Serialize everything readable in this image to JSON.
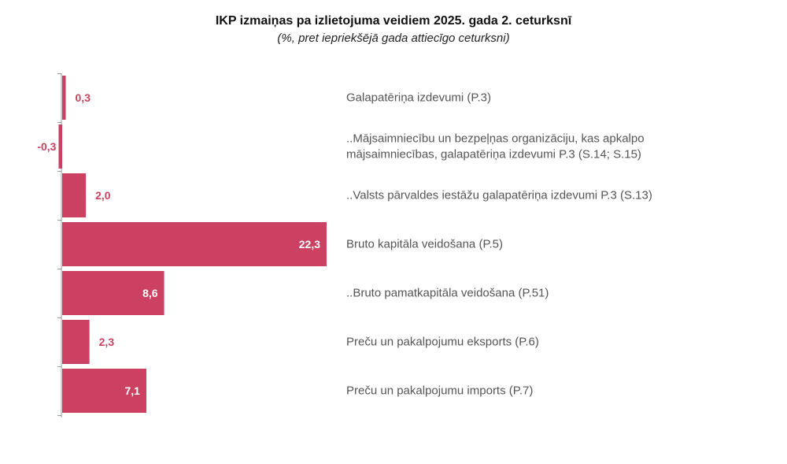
{
  "chart_data": {
    "type": "bar",
    "orientation": "horizontal",
    "title": "IKP izmaiņas pa izlietojuma veidiem 2025. gada 2. ceturksnī",
    "subtitle": "(%, pret iepriekšējā gada attiecīgo ceturksni)",
    "categories": [
      [
        "Galapatēriņa izdevumi (P.3)"
      ],
      [
        "..Mājsaimniecību un bezpeļņas organizāciju, kas apkalpo",
        "mājsaimniecības, galapatēriņa izdevumi P.3 (S.14; S.15)"
      ],
      [
        "..Valsts pārvaldes iestāžu galapatēriņa izdevumi P.3 (S.13)"
      ],
      [
        "Bruto kapitāla veidošana (P.5)"
      ],
      [
        "..Bruto pamatkapitāla veidošana (P.51)"
      ],
      [
        "Preču un pakalpojumu eksports (P.6)"
      ],
      [
        "Preču un pakalpojumu imports (P.7)"
      ]
    ],
    "values": [
      0.3,
      -0.3,
      2.0,
      22.3,
      8.6,
      2.3,
      7.1
    ],
    "value_labels": [
      "0,3",
      "-0,3",
      "2,0",
      "22,3",
      "8,6",
      "2,3",
      "7,1"
    ],
    "xlim": [
      -0.3,
      22.3
    ],
    "grid": false,
    "legend": "none",
    "colors": {
      "bar": "#cc4161",
      "label_outside": "#cc4161",
      "label_inside": "#ffffff",
      "axis": "#9a9a9a",
      "category_text": "#555555"
    }
  }
}
